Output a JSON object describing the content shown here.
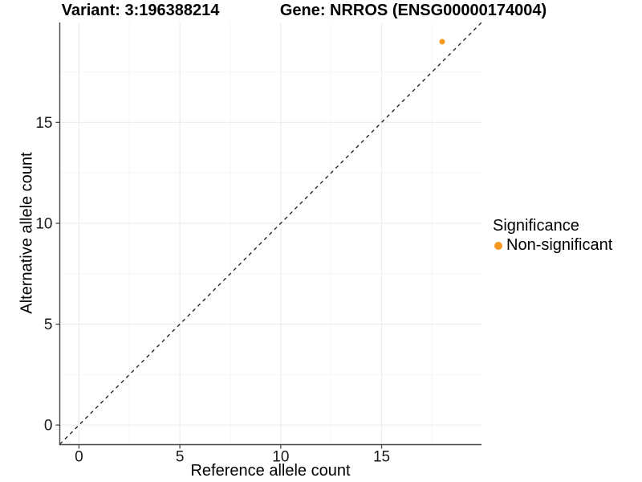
{
  "figure": {
    "title_left": "Variant: 3:196388214",
    "title_right": "Gene: NRROS (ENSG00000174004)"
  },
  "chart_data": {
    "type": "scatter",
    "title": "Variant: 3:196388214 — Gene: NRROS (ENSG00000174004)",
    "xlabel": "Reference allele count",
    "ylabel": "Alternative allele count",
    "xlim": [
      -0.95,
      19.95
    ],
    "ylim": [
      -0.97,
      19.95
    ],
    "x_ticks": [
      0,
      5,
      10,
      15
    ],
    "y_ticks": [
      0,
      5,
      10,
      15
    ],
    "x_minor_ticks": [
      2.5,
      7.5,
      12.5,
      17.5
    ],
    "y_minor_ticks": [
      2.5,
      7.5,
      12.5,
      17.5
    ],
    "grid": true,
    "identity_line": {
      "equation": "y = x",
      "style": "dashed",
      "color": "#1a1a1a"
    },
    "series": [
      {
        "name": "Non-significant",
        "color": "#F8991F",
        "points": [
          {
            "x": 18,
            "y": 19
          }
        ]
      }
    ],
    "legend": {
      "title": "Significance",
      "position": "right",
      "entries": [
        {
          "label": "Non-significant",
          "color": "#F8991F"
        }
      ]
    },
    "colors": {
      "background": "#ffffff",
      "axis_line": "#474747",
      "tick_label": "#1a1a1a",
      "grid_major": "#ececec",
      "grid_minor": "#f5f5f5"
    }
  }
}
